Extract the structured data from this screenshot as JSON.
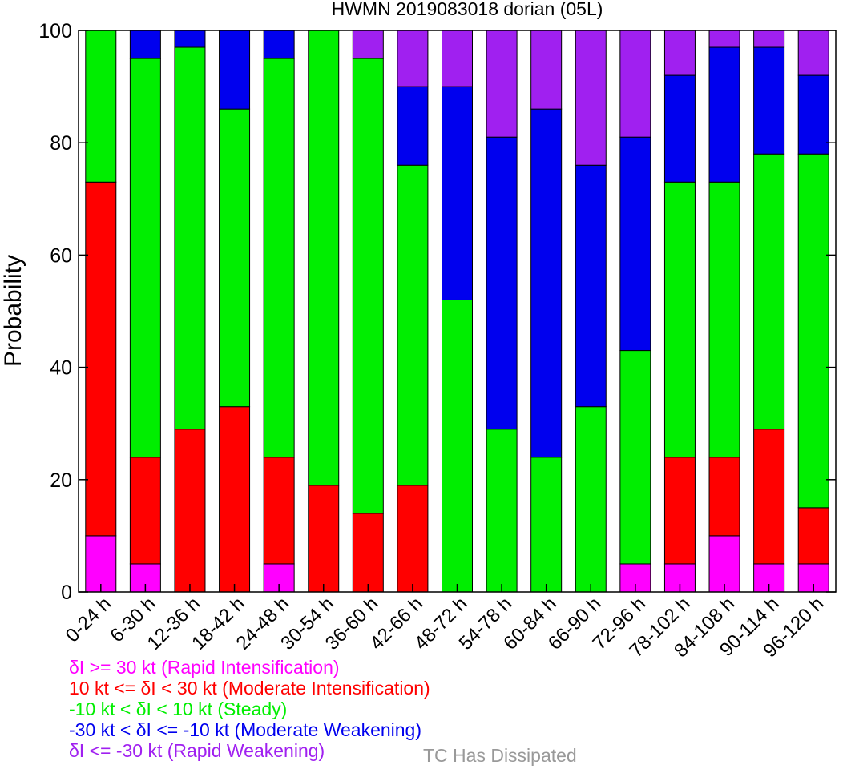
{
  "chart_data": {
    "type": "bar",
    "stacked": true,
    "title": "HWMN 2019083018 dorian (05L)",
    "xlabel": "",
    "ylabel": "Probability",
    "ylim": [
      0,
      100
    ],
    "yticks": [
      0,
      20,
      40,
      60,
      80,
      100
    ],
    "grid": false,
    "legend_position": "bottom-left",
    "categories": [
      "0-24 h",
      "6-30 h",
      "12-36 h",
      "18-42 h",
      "24-48 h",
      "30-54 h",
      "36-60 h",
      "42-66 h",
      "48-72 h",
      "54-78 h",
      "60-84 h",
      "66-90 h",
      "72-96 h",
      "78-102 h",
      "84-108 h",
      "90-114 h",
      "96-120 h"
    ],
    "series": [
      {
        "name": "δI >= 30 kt (Rapid Intensification)",
        "color": "#ff00ff",
        "values": [
          10,
          5,
          0,
          0,
          5,
          0,
          0,
          0,
          0,
          0,
          0,
          0,
          5,
          5,
          10,
          5,
          5
        ]
      },
      {
        "name": "10 kt <= δI < 30 kt (Moderate Intensification)",
        "color": "#ff0000",
        "values": [
          63,
          19,
          29,
          33,
          19,
          19,
          14,
          19,
          0,
          0,
          0,
          0,
          0,
          19,
          14,
          24,
          10
        ]
      },
      {
        "name": "-10 kt < δI < 10 kt (Steady)",
        "color": "#00ee00",
        "values": [
          27,
          71,
          68,
          53,
          71,
          81,
          81,
          57,
          52,
          29,
          24,
          33,
          38,
          49,
          49,
          49,
          63
        ]
      },
      {
        "name": "-30 kt < δI <= -10 kt (Moderate Weakening)",
        "color": "#0000ee",
        "values": [
          0,
          5,
          3,
          14,
          5,
          0,
          0,
          14,
          38,
          52,
          62,
          43,
          38,
          19,
          24,
          19,
          14
        ]
      },
      {
        "name": "δI <= -30 kt (Rapid Weakening)",
        "color": "#a020f0",
        "values": [
          0,
          0,
          0,
          0,
          0,
          0,
          5,
          10,
          10,
          19,
          14,
          24,
          19,
          8,
          3,
          3,
          8
        ]
      }
    ],
    "extra_legend": {
      "label": "TC Has Dissipated",
      "color": "#999999"
    }
  }
}
